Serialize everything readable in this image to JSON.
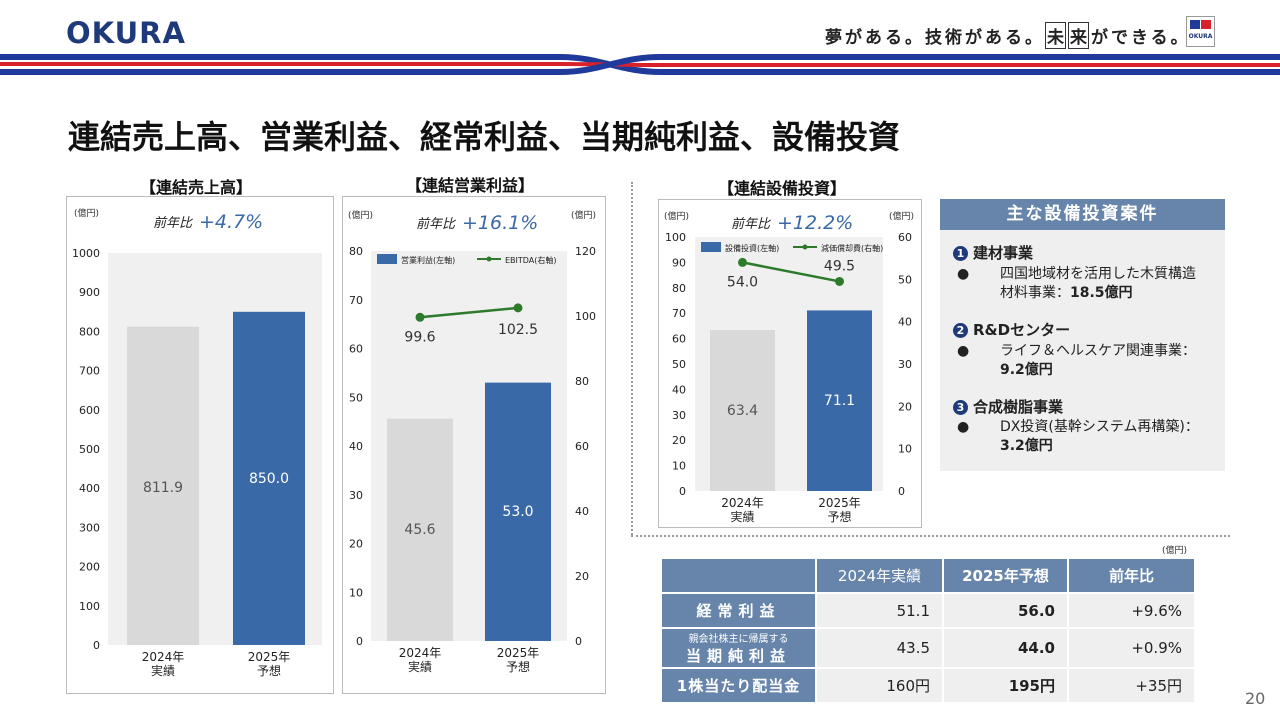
{
  "header": {
    "logo": "OKURA",
    "tagline_pre": "夢がある。技術がある。",
    "tagline_box1": "未",
    "tagline_box2": "来",
    "tagline_post": "ができる。",
    "badge_text": "OKURA"
  },
  "page_title": "連結売上高、営業利益、経常利益、当期純利益、設備投資",
  "page_number": "20",
  "colors": {
    "actual": "#d9d9d9",
    "forecast": "#3a69a8",
    "line": "#2d7a2d",
    "header": "#6785aa"
  },
  "chart_data": [
    {
      "type": "bar",
      "title": "【連結売上高】",
      "unit": "(億円)",
      "growth_label": "前年比",
      "growth_value": "+4.7%",
      "categories": [
        "2024年\n実績",
        "2025年\n予想"
      ],
      "values": [
        811.9,
        850.0
      ],
      "value_labels": [
        "811.9",
        "850.0"
      ],
      "ylim": [
        0,
        1000
      ],
      "yticks": [
        "0",
        "100",
        "200",
        "300",
        "400",
        "500",
        "600",
        "700",
        "800",
        "900",
        "1000"
      ]
    },
    {
      "type": "bar+line",
      "title": "【連結営業利益】",
      "unit_left": "(億円)",
      "unit_right": "(億円)",
      "growth_label": "前年比",
      "growth_value": "+16.1%",
      "categories": [
        "2024年\n実績",
        "2025年\n予想"
      ],
      "series": [
        {
          "name": "営業利益(左軸)",
          "type": "bar",
          "axis": "left",
          "values": [
            45.6,
            53.0
          ],
          "labels": [
            "45.6",
            "53.0"
          ]
        },
        {
          "name": "EBITDA(右軸)",
          "type": "line",
          "axis": "right",
          "values": [
            99.6,
            102.5
          ],
          "labels": [
            "99.6",
            "102.5"
          ]
        }
      ],
      "ylim_left": [
        0,
        80
      ],
      "ylim_right": [
        0,
        120
      ],
      "yticks_left": [
        "0",
        "10",
        "20",
        "30",
        "40",
        "50",
        "60",
        "70",
        "80"
      ],
      "yticks_right": [
        "0",
        "20",
        "40",
        "60",
        "80",
        "100",
        "120"
      ]
    },
    {
      "type": "bar+line",
      "title": "【連結設備投資】",
      "unit_left": "(億円)",
      "unit_right": "(億円)",
      "growth_label": "前年比",
      "growth_value": "+12.2%",
      "categories": [
        "2024年\n実績",
        "2025年\n予想"
      ],
      "series": [
        {
          "name": "設備投資(左軸)",
          "type": "bar",
          "axis": "left",
          "values": [
            63.4,
            71.1
          ],
          "labels": [
            "63.4",
            "71.1"
          ]
        },
        {
          "name": "減価償却費(右軸)",
          "type": "line",
          "axis": "right",
          "values": [
            54.0,
            49.5
          ],
          "labels": [
            "54.0",
            "49.5"
          ]
        }
      ],
      "ylim_left": [
        0,
        100
      ],
      "ylim_right": [
        0,
        60
      ],
      "yticks_left": [
        "0",
        "10",
        "20",
        "30",
        "40",
        "50",
        "60",
        "70",
        "80",
        "90",
        "100"
      ],
      "yticks_right": [
        "0",
        "10",
        "20",
        "30",
        "40",
        "50",
        "60"
      ]
    },
    {
      "type": "table",
      "unit": "(億円)",
      "columns": [
        "",
        "2024年実績",
        "2025年予想",
        "前年比"
      ],
      "rows": [
        {
          "label": "経常利益",
          "label_sub": "",
          "actual": "51.1",
          "forecast": "56.0",
          "change": "+9.6%"
        },
        {
          "label": "当期純利益",
          "label_sub": "親会社株主に帰属する",
          "actual": "43.5",
          "forecast": "44.0",
          "change": "+0.9%"
        },
        {
          "label": "1株当たり配当金",
          "label_sub": "",
          "actual": "160円",
          "forecast": "195円",
          "change": "+35円"
        }
      ]
    }
  ],
  "projects": {
    "header": "主な設備投資案件",
    "items": [
      {
        "num": "1",
        "category": "建材事業",
        "bullet": "●",
        "detail_pre": "四国地域材を活用した木質構造材料事業：",
        "detail_value": "18.5億円"
      },
      {
        "num": "2",
        "category": "R&Dセンター",
        "bullet": "●",
        "detail_pre": "ライフ＆ヘルスケア関連事業：",
        "detail_value": "9.2億円"
      },
      {
        "num": "3",
        "category": "合成樹脂事業",
        "bullet": "●",
        "detail_pre": "DX投資(基幹システム再構築)：",
        "detail_value": "3.2億円"
      }
    ]
  }
}
